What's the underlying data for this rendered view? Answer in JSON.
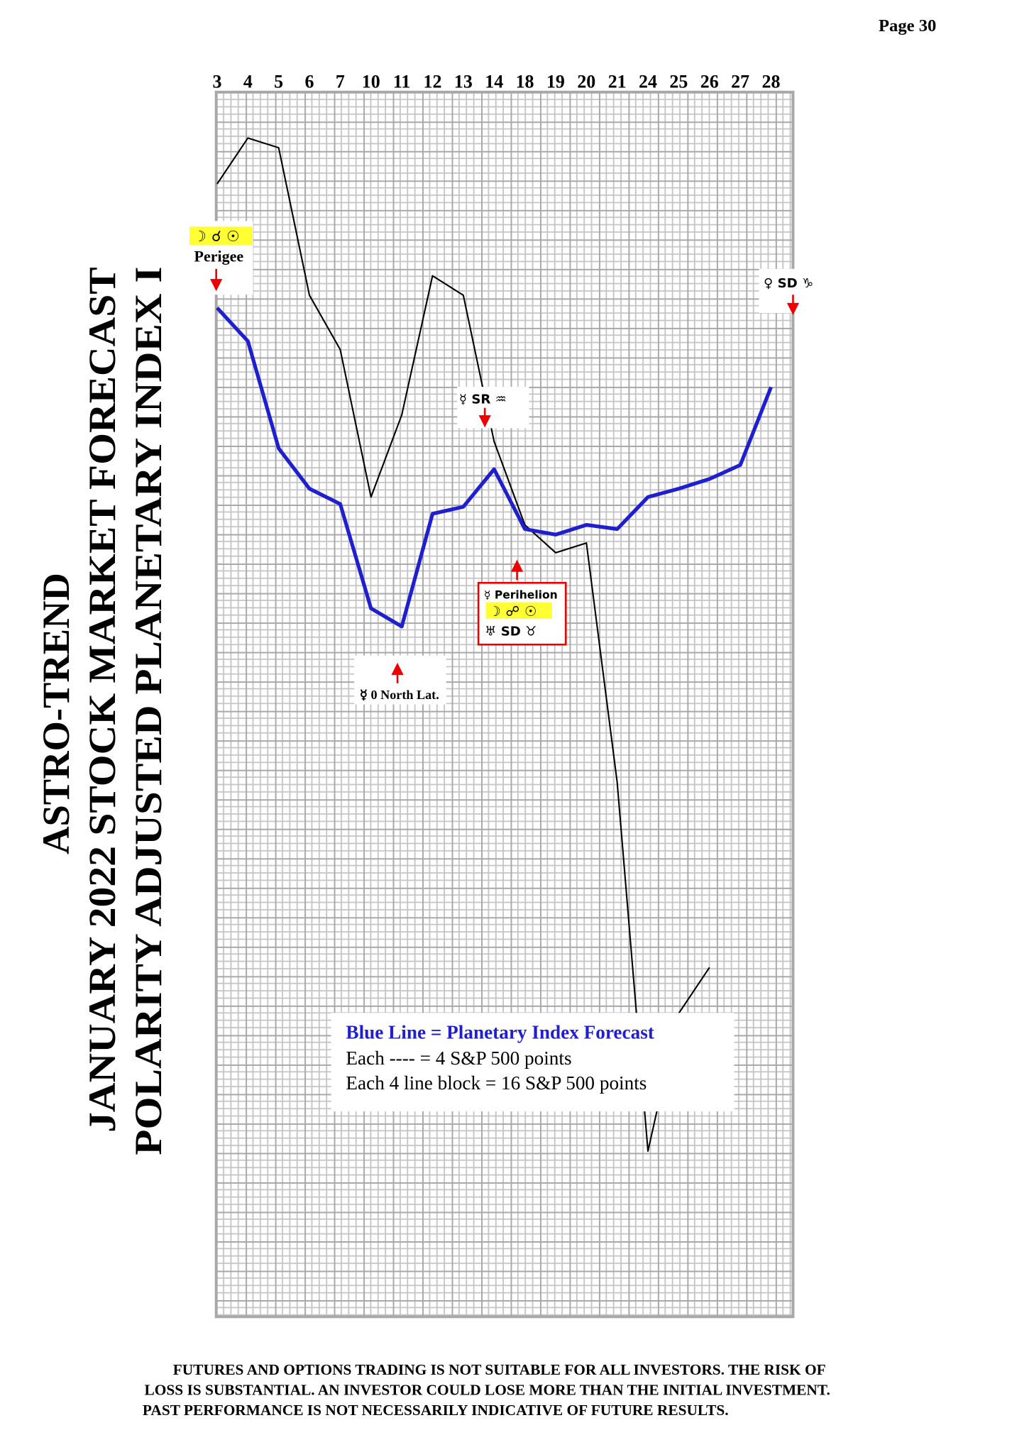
{
  "page": "Page 30",
  "chart_data": {
    "type": "line",
    "title_lines": [
      "ASTRO-TREND",
      "JANUARY 2022 STOCK MARKET FORECAST",
      "POLARITY ADJUSTED PLANETARY INDEX I"
    ],
    "categories": [
      "3",
      "4",
      "5",
      "6",
      "7",
      "10",
      "11",
      "12",
      "13",
      "14",
      "18",
      "19",
      "20",
      "21",
      "24",
      "25",
      "26",
      "27",
      "28"
    ],
    "ylim": [
      0,
      880
    ],
    "grid": true,
    "series": [
      {
        "color": "#000000",
        "values": [
          814,
          847,
          840,
          734,
          695,
          589,
          648,
          748,
          734,
          629,
          569,
          549,
          556,
          384,
          119,
          218,
          251,
          null,
          null
        ]
      },
      {
        "name": "Blue Line = Planetary Index Forecast",
        "color": "#1f1fd0",
        "values": [
          725,
          701,
          624,
          595,
          584,
          509,
          496,
          577,
          582,
          609,
          566,
          562,
          569,
          566,
          589,
          595,
          602,
          612,
          668
        ]
      }
    ],
    "annotations": [
      {
        "symbols": "☽ ☌ ☉",
        "text": "Perigee"
      },
      {
        "symbols": "♀ SD ♑"
      },
      {
        "symbols": "☿ SR ♒"
      },
      {
        "symbols": "☿ Perihelion",
        "text": "☽ ☍ ☉",
        "extra": "♅ SD ♉"
      },
      {
        "symbols": "☿ 0 North Lat."
      }
    ],
    "notes": [
      "Each ---- =   4 S&P 500 points",
      "Each 4 line block =  16  S&P 500 points"
    ]
  },
  "disclaimer": [
    "FUTURES AND OPTIONS TRADING IS NOT SUITABLE FOR ALL INVESTORS.  THE RISK OF",
    "LOSS IS SUBSTANTIAL.  AN INVESTOR COULD LOSE MORE THAN THE INITIAL INVESTMENT.",
    "PAST PERFORMANCE IS NOT NECESSARILY INDICATIVE OF FUTURE RESULTS."
  ]
}
